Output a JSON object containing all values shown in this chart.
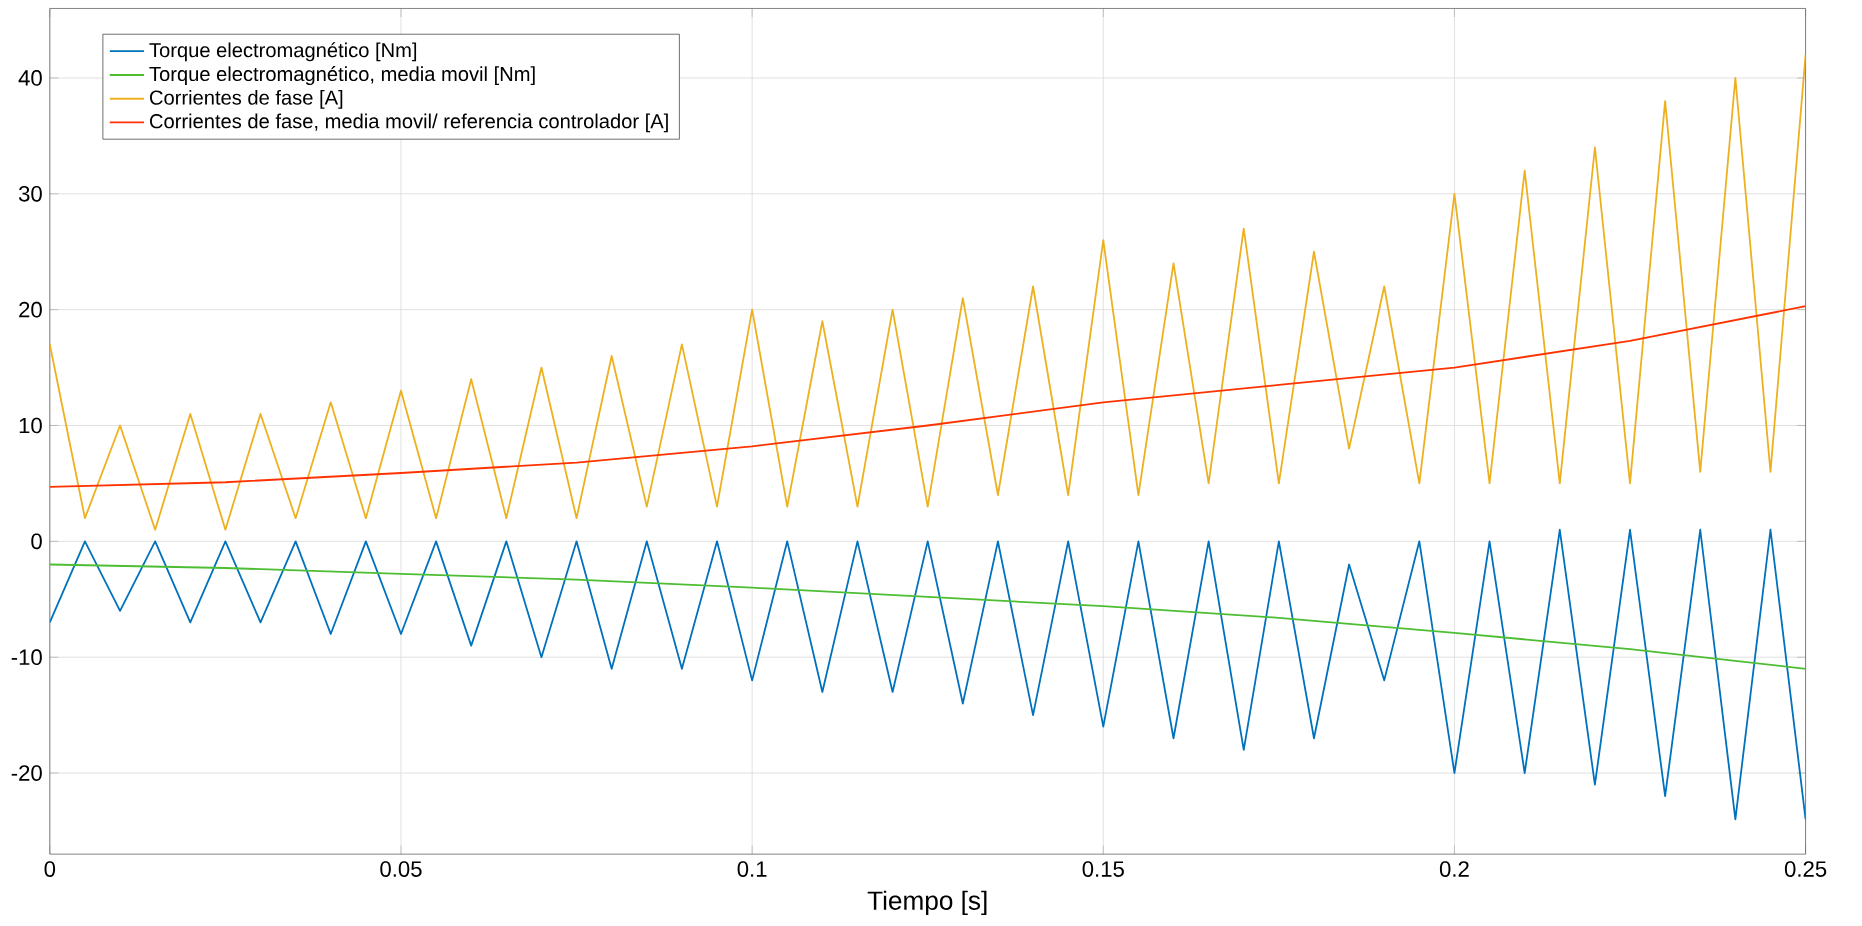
{
  "chart_data": {
    "type": "line",
    "xlabel": "Tiempo [s]",
    "xlim": [
      0,
      0.25
    ],
    "xticks": [
      0,
      0.05,
      0.1,
      0.15,
      0.2,
      0.25
    ],
    "ylim": [
      -27,
      46
    ],
    "yticks": [
      -20,
      -10,
      0,
      10,
      20,
      30,
      40
    ],
    "grid": true,
    "legend": "top left",
    "line_style": "solid",
    "series": [
      {
        "name": "Torque electromagnético [Nm]",
        "color": "#0072bd",
        "x": [
          0,
          0.005,
          0.01,
          0.015,
          0.02,
          0.025,
          0.03,
          0.035,
          0.04,
          0.045,
          0.05,
          0.055,
          0.06,
          0.065,
          0.07,
          0.075,
          0.08,
          0.085,
          0.09,
          0.095,
          0.1,
          0.105,
          0.11,
          0.115,
          0.12,
          0.125,
          0.13,
          0.135,
          0.14,
          0.145,
          0.15,
          0.155,
          0.16,
          0.165,
          0.17,
          0.175,
          0.18,
          0.185,
          0.19,
          0.195,
          0.2,
          0.205,
          0.21,
          0.215,
          0.22,
          0.225,
          0.23,
          0.235,
          0.24,
          0.245,
          0.25
        ],
        "values": [
          -7,
          0,
          -6,
          0,
          -7,
          0,
          -7,
          0,
          -8,
          0,
          -8,
          0,
          -9,
          0,
          -10,
          0,
          -11,
          0,
          -11,
          0,
          -12,
          0,
          -13,
          0,
          -13,
          0,
          -14,
          0,
          -15,
          0,
          -16,
          0,
          -17,
          0,
          -18,
          0,
          -17,
          -2,
          -12,
          0,
          -20,
          0,
          -20,
          1,
          -21,
          1,
          -22,
          1,
          -24,
          1,
          -24
        ]
      },
      {
        "name": "Torque electromagnético, media movil [Nm]",
        "color": "#4dbd33",
        "x": [
          0,
          0.025,
          0.05,
          0.075,
          0.1,
          0.125,
          0.15,
          0.175,
          0.2,
          0.225,
          0.25
        ],
        "values": [
          -2,
          -2.3,
          -2.8,
          -3.3,
          -4,
          -4.8,
          -5.6,
          -6.6,
          -7.9,
          -9.3,
          -11
        ]
      },
      {
        "name": "Corrientes de fase  [A]",
        "color": "#edb120",
        "x": [
          0,
          0.005,
          0.01,
          0.015,
          0.02,
          0.025,
          0.03,
          0.035,
          0.04,
          0.045,
          0.05,
          0.055,
          0.06,
          0.065,
          0.07,
          0.075,
          0.08,
          0.085,
          0.09,
          0.095,
          0.1,
          0.105,
          0.11,
          0.115,
          0.12,
          0.125,
          0.13,
          0.135,
          0.14,
          0.145,
          0.15,
          0.155,
          0.16,
          0.165,
          0.17,
          0.175,
          0.18,
          0.185,
          0.19,
          0.195,
          0.2,
          0.205,
          0.21,
          0.215,
          0.22,
          0.225,
          0.23,
          0.235,
          0.24,
          0.245,
          0.25
        ],
        "values": [
          17,
          2,
          10,
          1,
          11,
          1,
          11,
          2,
          12,
          2,
          13,
          2,
          14,
          2,
          15,
          2,
          16,
          3,
          17,
          3,
          20,
          3,
          19,
          3,
          20,
          3,
          21,
          4,
          22,
          4,
          26,
          4,
          24,
          5,
          27,
          5,
          25,
          8,
          22,
          5,
          30,
          5,
          32,
          5,
          34,
          5,
          38,
          6,
          40,
          6,
          42
        ]
      },
      {
        "name": "Corrientes de fase, media movil/ referencia controlador [A]",
        "color": "#ff3300",
        "x": [
          0,
          0.025,
          0.05,
          0.075,
          0.1,
          0.125,
          0.15,
          0.175,
          0.2,
          0.225,
          0.25
        ],
        "values": [
          4.7,
          5.1,
          5.9,
          6.8,
          8.2,
          10,
          12,
          13.5,
          15,
          17.3,
          20.3
        ]
      }
    ]
  }
}
